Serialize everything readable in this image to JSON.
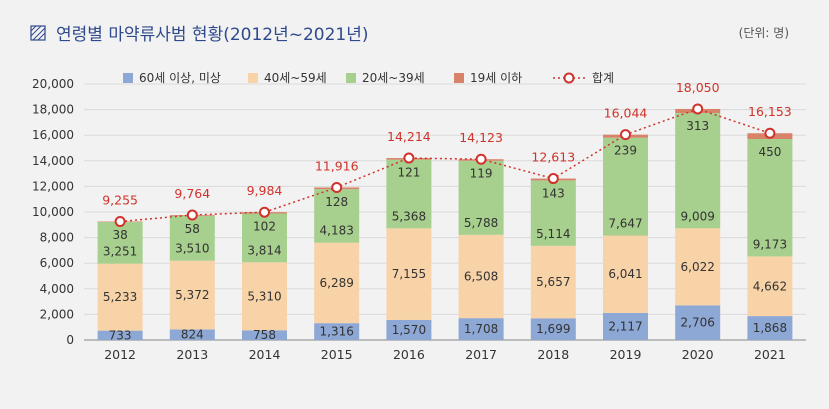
{
  "title": "연령별 마약류사범 현황(2012년~2021년)",
  "unit": "(단위: 명)",
  "colors": {
    "title": "#2f4a8c",
    "s60": "#8ea8d6",
    "s40": "#f9d3a8",
    "s20": "#a7cf8d",
    "s19": "#d9826a",
    "total": "#d0332b",
    "axis": "#333333",
    "grid": "#d9d9d9"
  },
  "chart_data": {
    "type": "bar",
    "stacked": true,
    "categories": [
      "2012",
      "2013",
      "2014",
      "2015",
      "2016",
      "2017",
      "2018",
      "2019",
      "2020",
      "2021"
    ],
    "series": [
      {
        "name": "60세 이상, 미상",
        "values": [
          733,
          824,
          758,
          1316,
          1570,
          1708,
          1699,
          2117,
          2706,
          1868
        ]
      },
      {
        "name": "40세~59세",
        "values": [
          5233,
          5372,
          5310,
          6289,
          7155,
          6508,
          5657,
          6041,
          6022,
          4662
        ]
      },
      {
        "name": "20세~39세",
        "values": [
          3251,
          3510,
          3814,
          4183,
          5368,
          5788,
          5114,
          7647,
          9009,
          9173
        ]
      },
      {
        "name": "19세 이하",
        "values": [
          38,
          58,
          102,
          128,
          121,
          119,
          143,
          239,
          313,
          450
        ]
      }
    ],
    "total": {
      "name": "합계",
      "type": "line",
      "values": [
        9255,
        9764,
        9984,
        11916,
        14214,
        14123,
        12613,
        16044,
        18050,
        16153
      ]
    },
    "yticks": [
      "20,000",
      "18,000",
      "16,000",
      "14,000",
      "12,000",
      "10,000",
      "8,000",
      "6,000",
      "4,000",
      "2,000",
      "0"
    ],
    "ylim": [
      0,
      20000
    ],
    "grid": true,
    "legend": "top"
  }
}
